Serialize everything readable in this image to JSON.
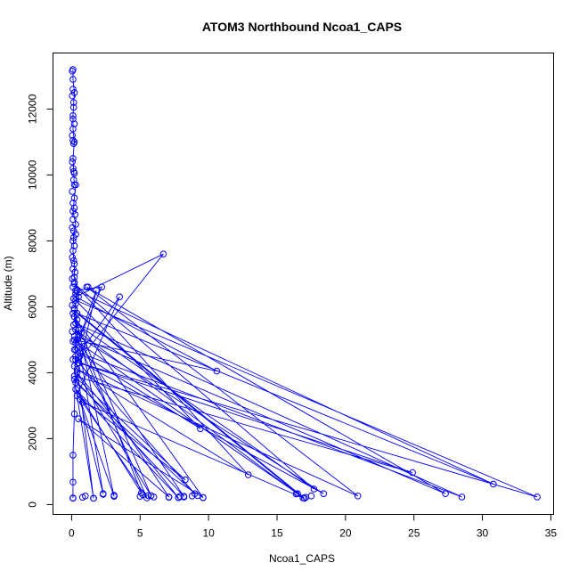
{
  "chart_data": {
    "type": "scatter",
    "title": "ATOM3 Northbound Ncoa1_CAPS",
    "xlabel": "Ncoa1_CAPS",
    "ylabel": "Altitude (m)",
    "xlim": [
      -1.36,
      35.2
    ],
    "ylim": [
      -300,
      13700
    ],
    "x_ticks": [
      0,
      5,
      10,
      15,
      20,
      25,
      30,
      35
    ],
    "y_ticks": [
      0,
      2000,
      4000,
      6000,
      8000,
      10000,
      12000
    ],
    "colors": {
      "series": "#0000ff",
      "axis": "#000000",
      "background": "#ffffff"
    },
    "series": [
      {
        "style": "lines+points",
        "x": [
          0.1,
          0.1,
          0.2,
          0.15,
          0.1,
          0.1,
          0.2,
          0.1,
          0.15,
          0.2,
          0.3,
          0.2,
          0.1,
          0.3,
          0.15,
          0.1,
          0.2,
          0.2,
          0.4,
          0.3,
          0.2,
          0.5,
          0.3,
          0.6,
          0.2,
          6.7,
          0.3,
          10.6,
          0.2,
          16.5,
          0.4,
          30.8,
          0.3,
          2.2,
          0.2,
          9.4,
          0.3,
          34.0,
          0.5,
          24.9,
          0.2,
          8.3,
          0.4,
          3.5,
          0.6,
          28.5,
          0.3,
          17.7,
          0.2,
          12.9,
          0.4,
          20.9,
          1.1,
          27.3,
          0.5,
          18.4,
          0.3,
          9.0,
          0.3,
          1.8,
          0.7,
          5.8,
          0.4,
          7.8,
          0.3,
          5.1,
          0.9,
          17.0,
          0.2,
          3.1,
          0.6,
          2.3,
          0.2,
          9.6,
          0.5,
          7.1,
          0.3,
          1.6,
          0.2,
          8.2,
          0.4,
          5.5,
          0.8,
          16.9,
          0.3,
          0.2,
          0.1,
          0.1,
          0.1
        ],
        "y": [
          13200,
          12900,
          12500,
          12200,
          11800,
          11400,
          11000,
          10500,
          10100,
          9700,
          9700,
          9300,
          8900,
          8500,
          8100,
          7700,
          7300,
          6900,
          6500,
          6100,
          5700,
          5300,
          4900,
          4500,
          4200,
          7600,
          6300,
          4050,
          5000,
          330,
          5800,
          620,
          6500,
          6600,
          4700,
          2300,
          6200,
          230,
          4300,
          970,
          3900,
          750,
          3300,
          6300,
          4600,
          230,
          5500,
          470,
          6700,
          900,
          4100,
          260,
          6600,
          330,
          5100,
          330,
          4400,
          330,
          3700,
          6500,
          5200,
          270,
          4000,
          210,
          3500,
          350,
          4800,
          190,
          5900,
          250,
          3200,
          330,
          5700,
          210,
          2600,
          230,
          4500,
          190,
          3800,
          250,
          5000,
          200,
          3100,
          200,
          5300,
          2750,
          1500,
          680,
          200
        ]
      },
      {
        "style": "points",
        "x": [
          0.05,
          0.1,
          0.05,
          0.15,
          0.1,
          0.2,
          0.05,
          0.1,
          0.15,
          0.05,
          0.1,
          0.2,
          0.15,
          0.05,
          0.1,
          0.2,
          0.25,
          0.1,
          0.05,
          0.15,
          0.3,
          0.1,
          0.2,
          0.05,
          0.15,
          0.1,
          0.25,
          0.05,
          0.2,
          0.1,
          0.3,
          0.15,
          0.05,
          0.2,
          0.1,
          0.4,
          0.15,
          0.05,
          0.2,
          0.1,
          1.2,
          0.5,
          0.3,
          0.1,
          0.1,
          0.8,
          1.0,
          1.6,
          2.3,
          3.1,
          5.0,
          5.2,
          5.6,
          6.0,
          7.1,
          7.8,
          7.9,
          8.2,
          8.8,
          9.2,
          9.6,
          16.4,
          17.1,
          17.5
        ],
        "y": [
          13150,
          12600,
          12400,
          12050,
          11700,
          11550,
          11200,
          11050,
          10950,
          10400,
          10200,
          10050,
          9850,
          9500,
          9150,
          9000,
          8800,
          8650,
          8400,
          8300,
          8200,
          8000,
          7850,
          7500,
          7400,
          7150,
          7050,
          6850,
          6750,
          6600,
          6400,
          6250,
          6050,
          5950,
          5800,
          5600,
          5450,
          5250,
          5100,
          4950,
          6600,
          6300,
          4700,
          4400,
          190,
          220,
          260,
          190,
          310,
          280,
          250,
          300,
          270,
          230,
          220,
          210,
          250,
          230,
          260,
          270,
          210,
          320,
          220,
          260
        ]
      }
    ]
  }
}
